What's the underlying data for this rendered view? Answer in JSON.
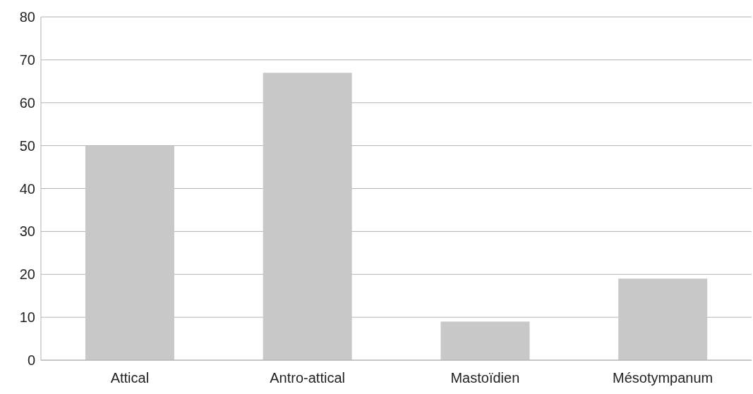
{
  "chart_data": {
    "type": "bar",
    "categories": [
      "Attical",
      "Antro-attical",
      "Mastoïdien",
      "Mésotympanum"
    ],
    "values": [
      50,
      67,
      9,
      19
    ],
    "color": "#c8c8c8",
    "ylim": [
      0,
      80
    ],
    "yticks": [
      0,
      10,
      20,
      30,
      40,
      50,
      60,
      70,
      80
    ],
    "grid": "y"
  }
}
